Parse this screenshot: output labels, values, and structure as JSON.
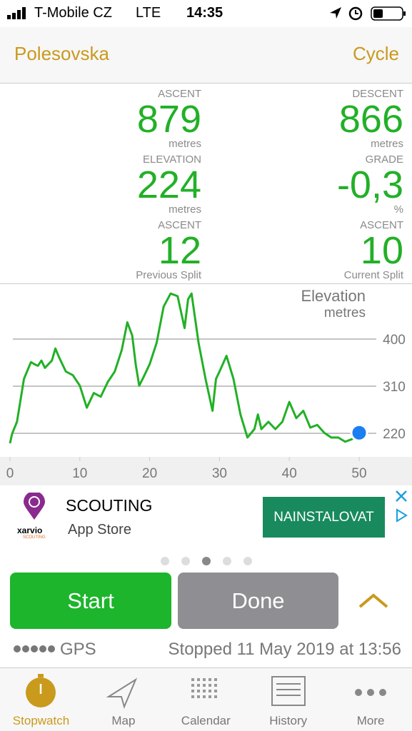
{
  "status_bar": {
    "carrier": "T-Mobile CZ",
    "network": "LTE",
    "time": "14:35"
  },
  "nav": {
    "title": "Polesovska",
    "activity": "Cycle"
  },
  "stats": [
    {
      "label": "ASCENT",
      "value": "879",
      "unit": "metres"
    },
    {
      "label": "DESCENT",
      "value": "866",
      "unit": "metres"
    },
    {
      "label": "ELEVATION",
      "value": "224",
      "unit": "metres"
    },
    {
      "label": "GRADE",
      "value": "-0,3",
      "unit": "%"
    },
    {
      "label": "ASCENT",
      "value": "12",
      "unit": "Previous Split"
    },
    {
      "label": "ASCENT",
      "value": "10",
      "unit": "Current Split"
    }
  ],
  "chart_data": {
    "type": "line",
    "title": "Elevation",
    "subtitle": "metres",
    "x": [
      0,
      0.3,
      1,
      2,
      3,
      3.5,
      4,
      4.5,
      5,
      6,
      6.5,
      7,
      8,
      9,
      10,
      11,
      11.5,
      12,
      13,
      14,
      15,
      16,
      16.8,
      17.5,
      18,
      18.5,
      19,
      20,
      21,
      22,
      23,
      24,
      25,
      25.5,
      26,
      27,
      28,
      29,
      29.5,
      30,
      31,
      32,
      33,
      34,
      35,
      35.5,
      36,
      37,
      38,
      39,
      40,
      41,
      42,
      43,
      44,
      45,
      46,
      47,
      48,
      49,
      50
    ],
    "series": [
      {
        "color": "#22b027",
        "values": [
          201,
          219,
          242,
          324,
          356,
          352,
          349,
          359,
          345,
          359,
          382,
          366,
          338,
          331,
          311,
          269,
          283,
          297,
          290,
          318,
          338,
          379,
          432,
          407,
          352,
          311,
          324,
          352,
          393,
          462,
          487,
          482,
          421,
          476,
          487,
          393,
          324,
          263,
          324,
          338,
          368,
          324,
          256,
          212,
          228,
          256,
          228,
          242,
          228,
          242,
          280,
          249,
          263,
          231,
          236,
          221,
          212,
          212,
          204,
          209,
          221
        ]
      }
    ],
    "xlim": [
      0,
      50
    ],
    "ylim": [
      175,
      505
    ],
    "xticks": [
      0,
      10,
      20,
      30,
      40,
      50
    ],
    "yticks": [
      220,
      310,
      400
    ],
    "grid": true
  },
  "ad": {
    "brand": "xarvio",
    "brand_sub": "SCOUTING",
    "title": "SCOUTING",
    "store": "App Store",
    "button": "NAINSTALOVAT"
  },
  "controls": {
    "start": "Start",
    "done": "Done"
  },
  "footer": {
    "gps": "GPS",
    "status": "Stopped 11 May 2019 at 13:56"
  },
  "tabs": [
    "Stopwatch",
    "Map",
    "Calendar",
    "History",
    "More"
  ]
}
